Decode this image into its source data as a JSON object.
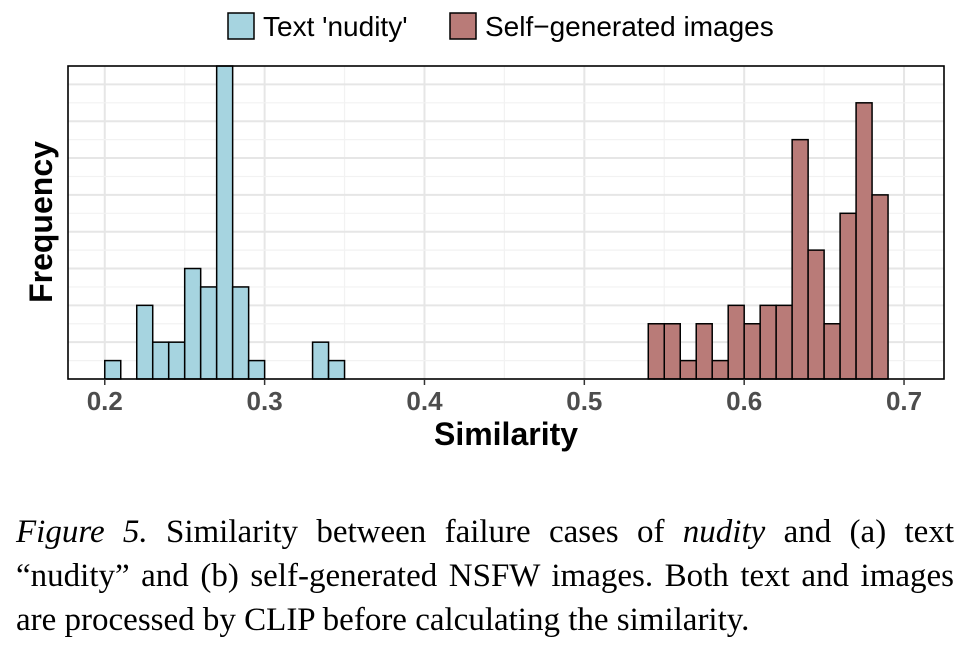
{
  "chart_data": {
    "type": "histogram",
    "xlabel": "Similarity",
    "ylabel": "Frequency",
    "xlim": [
      0.177,
      0.725
    ],
    "ylim": [
      0,
      17
    ],
    "x_ticks": [
      "0.2",
      "0.3",
      "0.4",
      "0.5",
      "0.6",
      "0.7"
    ],
    "x_tick_values": [
      0.2,
      0.3,
      0.4,
      0.5,
      0.6,
      0.7
    ],
    "y_tick_labels_shown": false,
    "grid": true,
    "legend_position": "top",
    "bin_width": 0.01,
    "series": [
      {
        "name": "Text 'nudity'",
        "color": "#a6d4e0",
        "bin_starts": [
          0.2,
          0.22,
          0.23,
          0.24,
          0.25,
          0.26,
          0.27,
          0.28,
          0.29,
          0.33,
          0.34
        ],
        "values": [
          1,
          4,
          2,
          2,
          6,
          5,
          17,
          5,
          1,
          2,
          1
        ]
      },
      {
        "name": "Self−generated images",
        "color": "#b97b78",
        "bin_starts": [
          0.54,
          0.55,
          0.56,
          0.57,
          0.58,
          0.59,
          0.6,
          0.61,
          0.62,
          0.63,
          0.64,
          0.65,
          0.66,
          0.67,
          0.68
        ],
        "values": [
          3,
          3,
          1,
          3,
          1,
          4,
          3,
          4,
          4,
          13,
          7,
          3,
          9,
          15,
          10
        ]
      }
    ]
  },
  "caption": {
    "lead": "Figure 5.",
    "part1": " Similarity between failure cases of ",
    "emphasis": "nudity",
    "part2": " and (a) text “nudity” and (b) self-generated NSFW images.  Both text and images are processed by CLIP before calculating the similarity."
  }
}
